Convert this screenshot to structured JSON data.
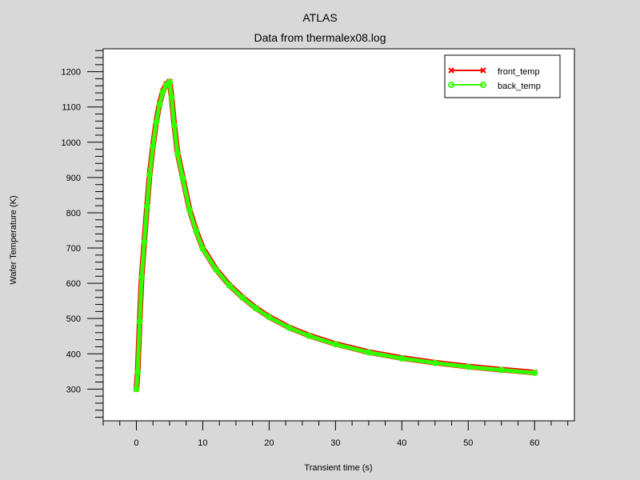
{
  "chart_data": {
    "type": "line",
    "title": "ATLAS",
    "subtitle": "Data from thermalex08.log",
    "xlabel": "Transient time (s)",
    "ylabel": "Wafer Temperature (K)",
    "xlim": [
      -5,
      66
    ],
    "ylim": [
      210,
      1265
    ],
    "x_ticks": [
      0,
      10,
      20,
      30,
      40,
      50,
      60
    ],
    "y_ticks": [
      300,
      400,
      500,
      600,
      700,
      800,
      900,
      1000,
      1100,
      1200
    ],
    "x_tick_labels": [
      "0",
      "10",
      "20",
      "30",
      "40",
      "50",
      "60"
    ],
    "y_tick_labels": [
      "300",
      "400",
      "500",
      "600",
      "700",
      "800",
      "900",
      "1000",
      "1100",
      "1200"
    ],
    "grid": false,
    "legend_position": "top-right",
    "series": [
      {
        "name": "front_temp",
        "color": "#ff0000",
        "marker": "x",
        "x": [
          0,
          0.2,
          0.5,
          0.8,
          1.2,
          1.6,
          2.0,
          2.5,
          3.0,
          3.5,
          4.0,
          4.5,
          5.0,
          5.3,
          5.7,
          6.2,
          7,
          8,
          9,
          10,
          12,
          14,
          16,
          18,
          20,
          23,
          26,
          30,
          35,
          40,
          45,
          50,
          55,
          60
        ],
        "values": [
          300,
          350,
          495,
          620,
          720,
          820,
          910,
          990,
          1060,
          1110,
          1145,
          1165,
          1172,
          1130,
          1050,
          970,
          900,
          810,
          750,
          700,
          640,
          595,
          560,
          530,
          505,
          475,
          452,
          428,
          405,
          388,
          375,
          364,
          355,
          347
        ]
      },
      {
        "name": "back_temp",
        "color": "#33ff00",
        "marker": "o",
        "x": [
          0,
          0.2,
          0.5,
          0.8,
          1.2,
          1.6,
          2.0,
          2.5,
          3.0,
          3.5,
          4.0,
          4.5,
          5.0,
          5.3,
          5.7,
          6.2,
          7,
          8,
          9,
          10,
          12,
          14,
          16,
          18,
          20,
          23,
          26,
          30,
          35,
          40,
          45,
          50,
          55,
          60
        ],
        "values": [
          300,
          348,
          492,
          617,
          718,
          818,
          908,
          988,
          1058,
          1108,
          1143,
          1163,
          1170,
          1128,
          1048,
          968,
          898,
          808,
          748,
          698,
          639,
          594,
          559,
          529,
          504,
          474,
          451,
          427,
          404,
          387,
          374,
          363,
          354,
          346
        ]
      }
    ]
  }
}
